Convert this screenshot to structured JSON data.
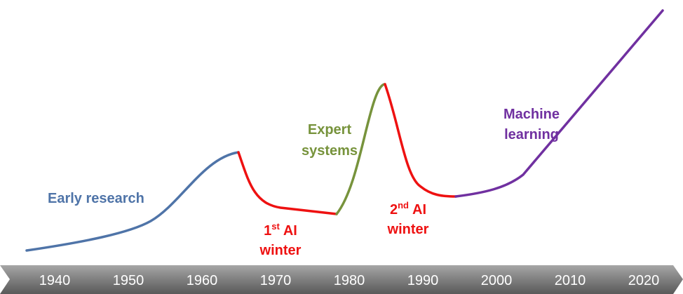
{
  "labels": {
    "early": "Early research",
    "expert": [
      "Expert",
      "systems"
    ],
    "winter1": {
      "number": "1",
      "suffix": "st",
      "word": "AI",
      "line2": "winter"
    },
    "winter2": {
      "number": "2",
      "suffix": "nd",
      "word": "AI",
      "line2": "winter"
    },
    "ml": [
      "Machine",
      "learning"
    ]
  },
  "timeline": [
    "1940",
    "1950",
    "1960",
    "1970",
    "1980",
    "1990",
    "2000",
    "2010",
    "2020"
  ]
}
